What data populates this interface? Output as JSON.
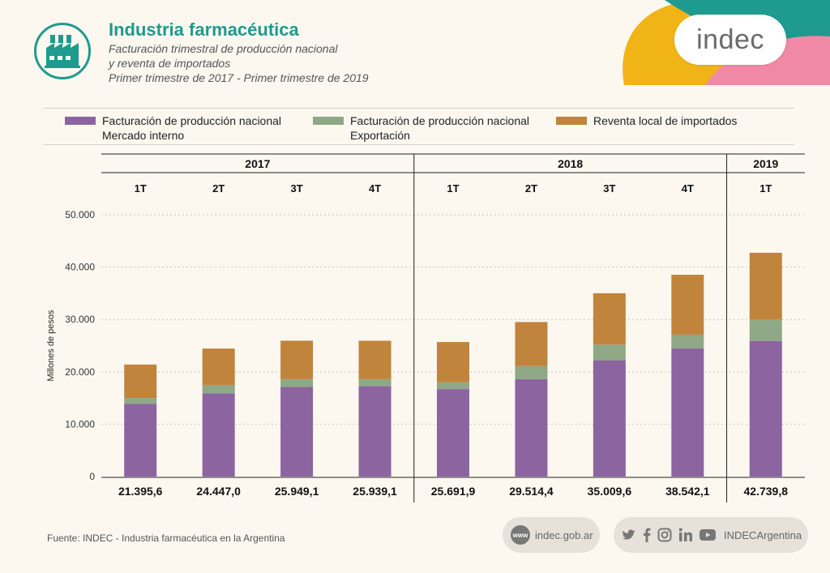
{
  "header": {
    "title": "Industria farmacéutica",
    "subtitle_line1": "Facturación trimestral de producción nacional",
    "subtitle_line2": "y reventa de importados",
    "subtitle_line3": "Primer trimestre de 2017 - Primer trimestre de 2019",
    "brand": "indec"
  },
  "legend": [
    {
      "line1": "Facturación de producción nacional",
      "line2": "Mercado interno",
      "color": "#8b64a0"
    },
    {
      "line1": "Facturación de producción nacional",
      "line2": "Exportación",
      "color": "#8fa886"
    },
    {
      "line1": "Reventa local de importados",
      "line2": "",
      "color": "#c0843c"
    }
  ],
  "chart_data": {
    "type": "bar",
    "stacked": true,
    "ylabel": "Millones de pesos",
    "ylim": [
      0,
      50000
    ],
    "yticks": [
      0,
      10000,
      20000,
      30000,
      40000,
      50000
    ],
    "ytick_labels": [
      "0",
      "10.000",
      "20.000",
      "30.000",
      "40.000",
      "50.000"
    ],
    "grid": true,
    "years": [
      {
        "label": "2017",
        "count": 4
      },
      {
        "label": "2018",
        "count": 4
      },
      {
        "label": "2019",
        "count": 1
      }
    ],
    "categories": [
      "1T",
      "2T",
      "3T",
      "4T",
      "1T",
      "2T",
      "3T",
      "4T",
      "1T"
    ],
    "series": [
      {
        "name": "Facturación de producción nacional Mercado interno",
        "color": "#8b64a0",
        "values": [
          13900,
          15900,
          17100,
          17300,
          16700,
          18600,
          22200,
          24500,
          25900
        ]
      },
      {
        "name": "Facturación de producción nacional Exportación",
        "color": "#8fa886",
        "values": [
          1100,
          1600,
          1500,
          1300,
          1300,
          2500,
          3000,
          2600,
          4100
        ]
      },
      {
        "name": "Reventa local de importados",
        "color": "#c0843c",
        "values": [
          6395.6,
          6947.0,
          7349.1,
          7339.1,
          7691.9,
          8414.4,
          9809.6,
          11442.1,
          12739.8
        ]
      }
    ],
    "totals": [
      "21.395,6",
      "24.447,0",
      "25.949,1",
      "25.939,1",
      "25.691,9",
      "29.514,4",
      "35.009,6",
      "38.542,1",
      "42.739,8"
    ]
  },
  "footer": {
    "source": "Fuente: INDEC - Industria farmacéutica en la Argentina",
    "website_badge": "www",
    "website": "indec.gob.ar",
    "social_handle": "INDECArgentina"
  }
}
